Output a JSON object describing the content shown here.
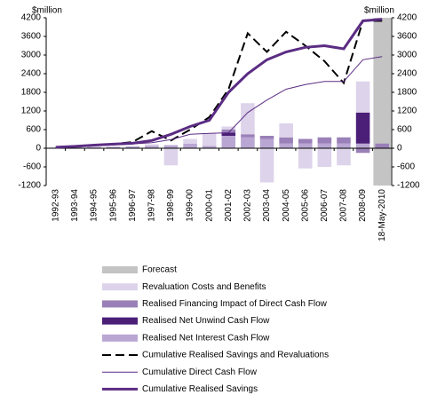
{
  "chart_data": {
    "type": "combo",
    "y_label": "$million",
    "y2_label": "$million",
    "categories": [
      "1992-93",
      "1993-94",
      "1994-95",
      "1995-96",
      "1996-97",
      "1997-98",
      "1998-99",
      "1999-00",
      "2000-01",
      "2001-02",
      "2002-03",
      "2003-04",
      "2004-05",
      "2005-06",
      "2006-07",
      "2007-08",
      "2008-09",
      "18-May-2010"
    ],
    "ylim": [
      -1200,
      4200
    ],
    "yticks": [
      -1200,
      -600,
      0,
      600,
      1200,
      1800,
      2400,
      3000,
      3600,
      4200
    ],
    "y2lim": [
      -1200,
      4200
    ],
    "y2ticks": [
      -1200,
      -600,
      0,
      600,
      1200,
      1800,
      2400,
      3000,
      3600,
      4200
    ],
    "series": [
      {
        "name": "Forecast",
        "kind": "shade",
        "color": "#c4c4c4",
        "values": [
          null,
          null,
          null,
          null,
          null,
          null,
          null,
          null,
          null,
          null,
          null,
          null,
          null,
          null,
          null,
          null,
          null,
          4200
        ]
      },
      {
        "name": "Revaluation Costs and Benefits",
        "kind": "bar",
        "color": "#ddd3ea",
        "values": [
          null,
          null,
          null,
          null,
          null,
          50,
          -550,
          150,
          400,
          100,
          1000,
          -1100,
          450,
          -650,
          -600,
          -550,
          1000,
          null
        ]
      },
      {
        "name": "Realised Financing Impact of Direct Cash Flow",
        "kind": "bar",
        "color": "#9a80b8",
        "values": [
          null,
          null,
          null,
          null,
          null,
          null,
          null,
          null,
          null,
          100,
          100,
          100,
          200,
          150,
          200,
          200,
          -150,
          150
        ]
      },
      {
        "name": "Realised Net Unwind Cash Flow",
        "kind": "bar",
        "color": "#4b1f78",
        "values": [
          null,
          null,
          null,
          null,
          null,
          null,
          null,
          null,
          null,
          100,
          null,
          null,
          null,
          null,
          null,
          null,
          1000,
          null
        ]
      },
      {
        "name": "Realised Net Interest Cash Flow",
        "kind": "bar",
        "color": "#b9a6d3",
        "values": [
          20,
          30,
          40,
          50,
          60,
          80,
          100,
          150,
          80,
          400,
          350,
          300,
          150,
          150,
          150,
          150,
          150,
          null
        ]
      },
      {
        "name": "Cumulative Realised Savings and Revaluations",
        "kind": "line",
        "color": "#000000",
        "dash": true,
        "width": 2,
        "values": [
          30,
          60,
          100,
          130,
          200,
          550,
          250,
          600,
          1000,
          1900,
          3700,
          3100,
          3750,
          3300,
          2800,
          2100,
          4100,
          4100
        ]
      },
      {
        "name": "Cumulative Direct Cash Flow",
        "kind": "line",
        "color": "#5b2c83",
        "dash": false,
        "width": 1,
        "values": [
          20,
          50,
          80,
          110,
          140,
          180,
          280,
          450,
          480,
          500,
          1150,
          1550,
          1900,
          2050,
          2150,
          2150,
          2850,
          2950
        ]
      },
      {
        "name": "Cumulative Realised Savings",
        "kind": "line",
        "color": "#5b2c83",
        "dash": false,
        "width": 3,
        "values": [
          30,
          60,
          100,
          130,
          160,
          250,
          450,
          700,
          900,
          1800,
          2400,
          2850,
          3100,
          3250,
          3300,
          3200,
          4100,
          4150
        ]
      }
    ]
  }
}
